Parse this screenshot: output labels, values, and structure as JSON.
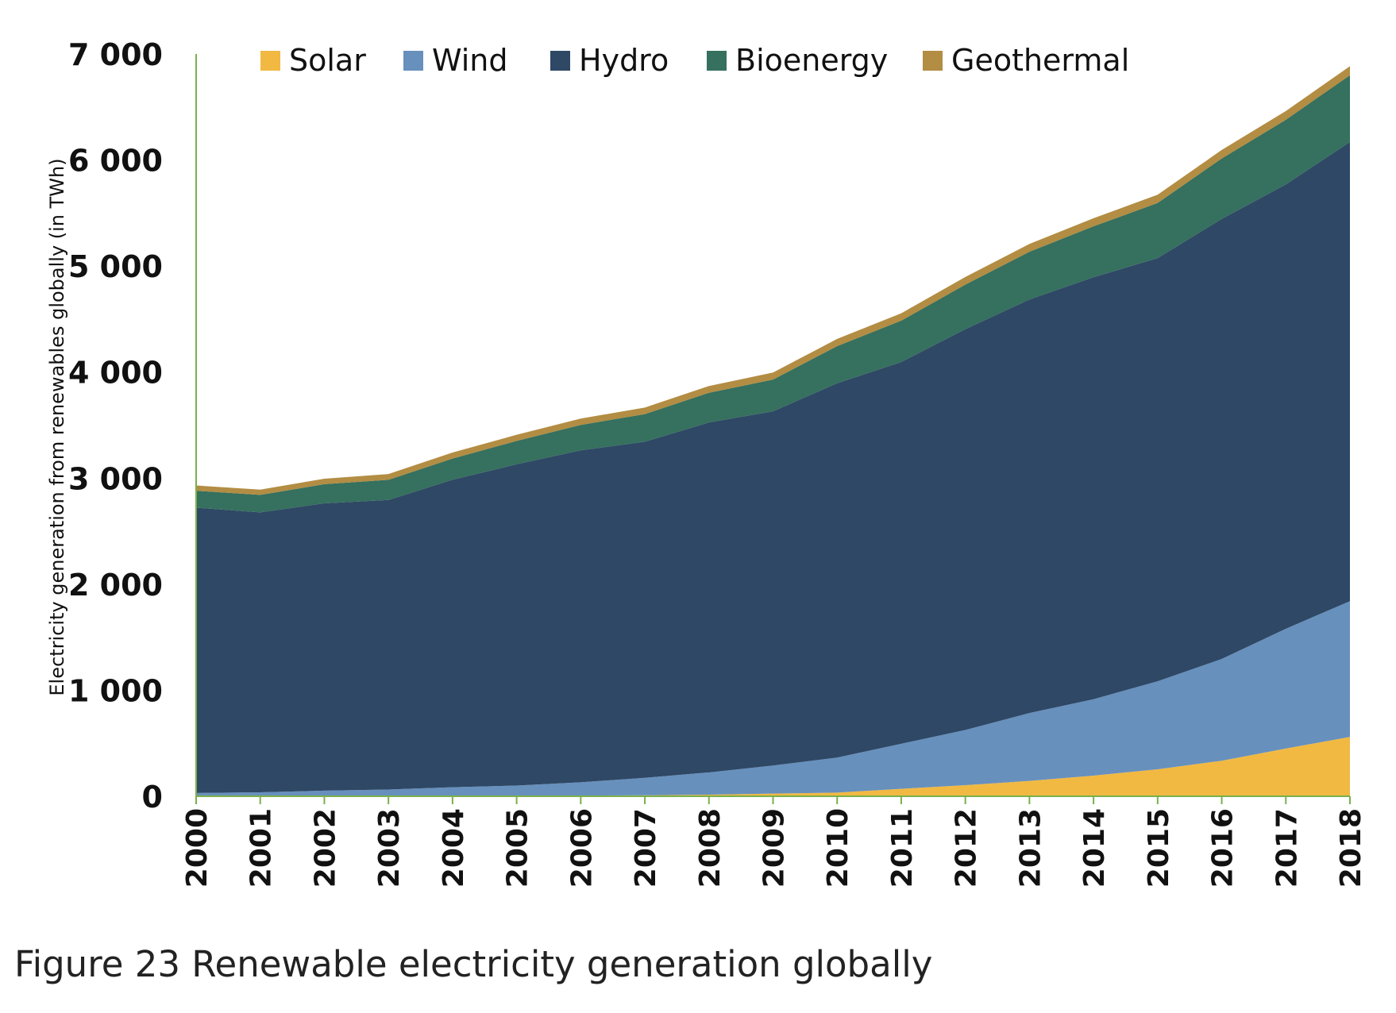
{
  "caption": "Figure 23 Renewable electricity generation globally",
  "chart_data": {
    "type": "area",
    "stacked": true,
    "title": "",
    "xlabel": "",
    "ylabel": "Electricity generation from renewables globally (in TWh)",
    "ylim": [
      0,
      7000
    ],
    "yticks": [
      0,
      1000,
      2000,
      3000,
      4000,
      5000,
      6000,
      7000
    ],
    "ytick_labels": [
      "0",
      "1 000",
      "2 000",
      "3 000",
      "4 000",
      "5 000",
      "6 000",
      "7 000"
    ],
    "grid": false,
    "legend_position": "top",
    "x": [
      "2000",
      "2001",
      "2002",
      "2003",
      "2004",
      "2005",
      "2006",
      "2007",
      "2008",
      "2009",
      "2010",
      "2011",
      "2012",
      "2013",
      "2014",
      "2015",
      "2016",
      "2017",
      "2018"
    ],
    "series": [
      {
        "name": "Solar",
        "color": "#f1b942",
        "values": [
          1,
          2,
          3,
          4,
          5,
          6,
          7,
          9,
          15,
          25,
          35,
          70,
          105,
          145,
          195,
          255,
          335,
          450,
          560
        ]
      },
      {
        "name": "Wind",
        "color": "#6790bd",
        "values": [
          30,
          35,
          50,
          60,
          80,
          95,
          125,
          165,
          210,
          265,
          330,
          425,
          520,
          640,
          720,
          830,
          960,
          1130,
          1280
        ]
      },
      {
        "name": "Hydro",
        "color": "#2e4865",
        "values": [
          2690,
          2640,
          2710,
          2730,
          2900,
          3030,
          3130,
          3170,
          3300,
          3340,
          3530,
          3600,
          3780,
          3900,
          3980,
          3990,
          4150,
          4190,
          4330
        ]
      },
      {
        "name": "Bioenergy",
        "color": "#36705e",
        "values": [
          160,
          165,
          180,
          190,
          200,
          220,
          240,
          260,
          280,
          300,
          350,
          390,
          420,
          450,
          480,
          520,
          570,
          610,
          630
        ]
      },
      {
        "name": "Geothermal",
        "color": "#b28d43",
        "values": [
          50,
          50,
          52,
          55,
          57,
          58,
          60,
          62,
          64,
          66,
          68,
          70,
          72,
          74,
          76,
          78,
          80,
          82,
          85
        ]
      }
    ]
  }
}
